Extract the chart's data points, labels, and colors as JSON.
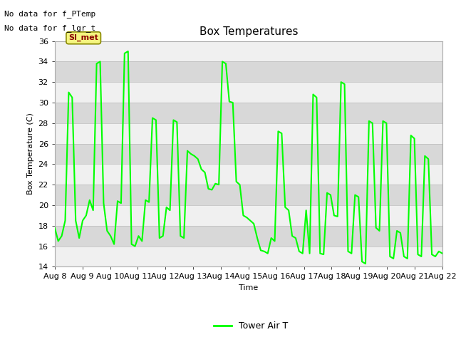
{
  "title": "Box Temperatures",
  "ylabel": "Box Temperature (C)",
  "xlabel": "Time",
  "ylim": [
    14,
    36
  ],
  "yticks": [
    14,
    16,
    18,
    20,
    22,
    24,
    26,
    28,
    30,
    32,
    34,
    36
  ],
  "line_color": "#00FF00",
  "line_width": 1.5,
  "bg_color": "#ffffff",
  "plot_bg_color": "#e8e8e8",
  "band_light": "#f0f0f0",
  "band_dark": "#d8d8d8",
  "no_data_texts": [
    "No data for f_PTemp",
    "No data for f_lgr_t"
  ],
  "si_met_label": "SI_met",
  "legend_label": "Tower Air T",
  "x_tick_labels": [
    "Aug 8",
    "Aug 9",
    "Aug 10",
    "Aug 11",
    "Aug 12",
    "Aug 13",
    "Aug 14",
    "Aug 15",
    "Aug 16",
    "Aug 17",
    "Aug 18",
    "Aug 19",
    "Aug 20",
    "Aug 21",
    "Aug 22"
  ],
  "temperature_data": [
    17.8,
    16.5,
    17.0,
    18.5,
    31.0,
    30.5,
    18.5,
    16.8,
    18.5,
    19.0,
    20.5,
    19.5,
    33.8,
    34.0,
    20.2,
    17.5,
    17.0,
    16.2,
    20.4,
    20.2,
    34.8,
    35.0,
    16.2,
    16.0,
    17.0,
    16.5,
    20.5,
    20.3,
    28.5,
    28.3,
    16.8,
    17.0,
    19.8,
    19.5,
    28.3,
    28.1,
    17.0,
    16.8,
    25.3,
    25.0,
    24.8,
    24.5,
    23.5,
    23.2,
    21.6,
    21.5,
    22.1,
    22.0,
    34.0,
    33.8,
    30.1,
    30.0,
    22.3,
    22.0,
    19.0,
    18.8,
    18.5,
    18.2,
    16.8,
    15.6,
    15.5,
    15.3,
    16.8,
    16.5,
    27.2,
    27.0,
    19.8,
    19.5,
    17.0,
    16.8,
    15.5,
    15.3,
    19.5,
    15.3,
    30.8,
    30.5,
    15.3,
    15.2,
    21.2,
    21.0,
    19.0,
    18.9,
    32.0,
    31.8,
    15.5,
    15.3,
    21.0,
    20.8,
    14.5,
    14.3,
    28.2,
    28.0,
    17.8,
    17.5,
    28.2,
    28.0,
    15.0,
    14.8,
    17.5,
    17.3,
    15.0,
    14.8,
    26.8,
    26.5,
    15.2,
    15.0,
    24.8,
    24.5,
    15.2,
    15.0,
    15.5,
    15.3
  ],
  "title_fontsize": 11,
  "axis_fontsize": 8,
  "tick_fontsize": 8
}
